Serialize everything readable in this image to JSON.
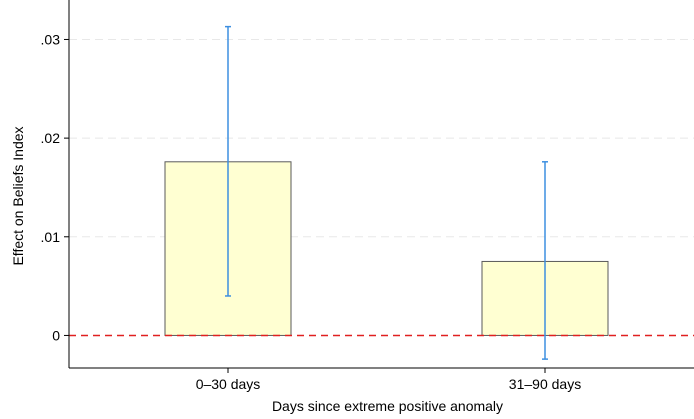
{
  "chart_data": {
    "type": "bar",
    "title": "",
    "xlabel": "Days since extreme positive anomaly",
    "ylabel": "Effect on Beliefs Index",
    "categories": [
      "0–30 days",
      "31–90 days"
    ],
    "values": [
      0.0176,
      0.0075
    ],
    "ci_lower": [
      0.004,
      -0.0024
    ],
    "ci_upper": [
      0.0313,
      0.0176
    ],
    "ylim": [
      -0.0033,
      0.034
    ],
    "yticks": [
      0,
      0.01,
      0.02,
      0.03
    ],
    "ytick_labels": [
      "0",
      ".01",
      ".02",
      ".03"
    ],
    "grid": true,
    "reference_line": 0,
    "colors": {
      "bar_fill": "#ffffd2",
      "bar_stroke": "#5a5a5a",
      "error_bar": "#3d8fe0",
      "reference_line": "#e02020",
      "grid": "#e8e8e8",
      "axis": "#000000"
    }
  }
}
